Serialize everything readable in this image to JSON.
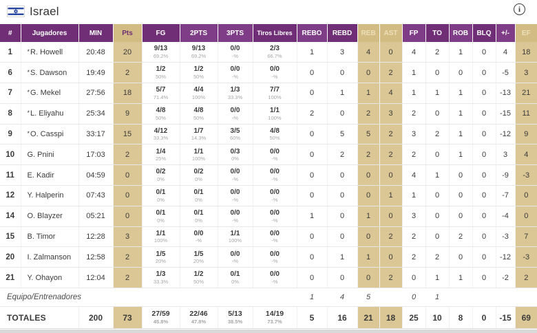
{
  "header": {
    "team": "Israel",
    "flag": "israel-flag",
    "info_label": "i"
  },
  "colors": {
    "header_purple_dark": "#6f2e76",
    "header_purple_light": "#7e3d86",
    "header_tan": "#d2bc84",
    "cell_tan": "#dbc795",
    "text": "#3a3a3a",
    "pct_text": "#a5a5a5",
    "flag_blue": "#1e3f9e"
  },
  "table": {
    "columns": [
      {
        "key": "num",
        "label": "#",
        "shade": "dark"
      },
      {
        "key": "name",
        "label": "Jugadores",
        "shade": "dark"
      },
      {
        "key": "min",
        "label": "MIN",
        "shade": "dark"
      },
      {
        "key": "pts",
        "label": "Pts",
        "shade": "tan",
        "tan": true,
        "ptsHead": true
      },
      {
        "key": "fg",
        "label": "FG",
        "shade": "dark"
      },
      {
        "key": "p2",
        "label": "2PTS",
        "shade": "light"
      },
      {
        "key": "p3",
        "label": "3PTS",
        "shade": "light"
      },
      {
        "key": "tl",
        "label": "Tiros Libres",
        "shade": "dark",
        "small": true
      },
      {
        "key": "rebo",
        "label": "REBO",
        "shade": "light"
      },
      {
        "key": "rebd",
        "label": "REBD",
        "shade": "dark"
      },
      {
        "key": "reb",
        "label": "REB",
        "shade": "tan",
        "tan": true
      },
      {
        "key": "ast",
        "label": "AST",
        "shade": "tan",
        "tan": true
      },
      {
        "key": "fp",
        "label": "FP",
        "shade": "light"
      },
      {
        "key": "to",
        "label": "TO",
        "shade": "dark"
      },
      {
        "key": "rob",
        "label": "ROB",
        "shade": "light"
      },
      {
        "key": "blq",
        "label": "BLQ",
        "shade": "dark"
      },
      {
        "key": "pm",
        "label": "+/-",
        "shade": "light"
      },
      {
        "key": "ef",
        "label": "EF",
        "shade": "tan",
        "tan": true
      }
    ],
    "rows": [
      {
        "num": "1",
        "name": "R. Howell",
        "starter": true,
        "min": "20:48",
        "pts": "20",
        "fg": {
          "v": "9/13",
          "p": "69.2%"
        },
        "p2": {
          "v": "9/13",
          "p": "69.2%"
        },
        "p3": {
          "v": "0/0",
          "p": "-%"
        },
        "tl": {
          "v": "2/3",
          "p": "66.7%"
        },
        "rebo": "1",
        "rebd": "3",
        "reb": "4",
        "ast": "0",
        "fp": "4",
        "to": "2",
        "rob": "1",
        "blq": "0",
        "pm": "4",
        "ef": "18"
      },
      {
        "num": "6",
        "name": "S. Dawson",
        "starter": true,
        "min": "19:49",
        "pts": "2",
        "fg": {
          "v": "1/2",
          "p": "50%"
        },
        "p2": {
          "v": "1/2",
          "p": "50%"
        },
        "p3": {
          "v": "0/0",
          "p": "-%"
        },
        "tl": {
          "v": "0/0",
          "p": "-%"
        },
        "rebo": "0",
        "rebd": "0",
        "reb": "0",
        "ast": "2",
        "fp": "1",
        "to": "0",
        "rob": "0",
        "blq": "0",
        "pm": "-5",
        "ef": "3"
      },
      {
        "num": "7",
        "name": "G. Mekel",
        "starter": true,
        "min": "27:56",
        "pts": "18",
        "fg": {
          "v": "5/7",
          "p": "71.4%"
        },
        "p2": {
          "v": "4/4",
          "p": "100%"
        },
        "p3": {
          "v": "1/3",
          "p": "33.3%"
        },
        "tl": {
          "v": "7/7",
          "p": "100%"
        },
        "rebo": "0",
        "rebd": "1",
        "reb": "1",
        "ast": "4",
        "fp": "1",
        "to": "1",
        "rob": "1",
        "blq": "0",
        "pm": "-13",
        "ef": "21"
      },
      {
        "num": "8",
        "name": "L. Eliyahu",
        "starter": true,
        "min": "25:34",
        "pts": "9",
        "fg": {
          "v": "4/8",
          "p": "50%"
        },
        "p2": {
          "v": "4/8",
          "p": "50%"
        },
        "p3": {
          "v": "0/0",
          "p": "-%"
        },
        "tl": {
          "v": "1/1",
          "p": "100%"
        },
        "rebo": "2",
        "rebd": "0",
        "reb": "2",
        "ast": "3",
        "fp": "2",
        "to": "0",
        "rob": "1",
        "blq": "0",
        "pm": "-15",
        "ef": "11"
      },
      {
        "num": "9",
        "name": "O. Casspi",
        "starter": true,
        "min": "33:17",
        "pts": "15",
        "fg": {
          "v": "4/12",
          "p": "33.3%"
        },
        "p2": {
          "v": "1/7",
          "p": "14.3%"
        },
        "p3": {
          "v": "3/5",
          "p": "60%"
        },
        "tl": {
          "v": "4/8",
          "p": "50%"
        },
        "rebo": "0",
        "rebd": "5",
        "reb": "5",
        "ast": "2",
        "fp": "3",
        "to": "2",
        "rob": "1",
        "blq": "0",
        "pm": "-12",
        "ef": "9"
      },
      {
        "num": "10",
        "name": "G. Pnini",
        "starter": false,
        "min": "17:03",
        "pts": "2",
        "fg": {
          "v": "1/4",
          "p": "25%"
        },
        "p2": {
          "v": "1/1",
          "p": "100%"
        },
        "p3": {
          "v": "0/3",
          "p": "0%"
        },
        "tl": {
          "v": "0/0",
          "p": "-%"
        },
        "rebo": "0",
        "rebd": "2",
        "reb": "2",
        "ast": "2",
        "fp": "2",
        "to": "0",
        "rob": "1",
        "blq": "0",
        "pm": "3",
        "ef": "4"
      },
      {
        "num": "11",
        "name": "E. Kadir",
        "starter": false,
        "min": "04:59",
        "pts": "0",
        "fg": {
          "v": "0/2",
          "p": "0%"
        },
        "p2": {
          "v": "0/2",
          "p": "0%"
        },
        "p3": {
          "v": "0/0",
          "p": "-%"
        },
        "tl": {
          "v": "0/0",
          "p": "-%"
        },
        "rebo": "0",
        "rebd": "0",
        "reb": "0",
        "ast": "0",
        "fp": "4",
        "to": "1",
        "rob": "0",
        "blq": "0",
        "pm": "-9",
        "ef": "-3"
      },
      {
        "num": "12",
        "name": "Y. Halperin",
        "starter": false,
        "min": "07:43",
        "pts": "0",
        "fg": {
          "v": "0/1",
          "p": "0%"
        },
        "p2": {
          "v": "0/1",
          "p": "0%"
        },
        "p3": {
          "v": "0/0",
          "p": "-%"
        },
        "tl": {
          "v": "0/0",
          "p": "-%"
        },
        "rebo": "0",
        "rebd": "0",
        "reb": "0",
        "ast": "1",
        "fp": "1",
        "to": "0",
        "rob": "0",
        "blq": "0",
        "pm": "-7",
        "ef": "0"
      },
      {
        "num": "14",
        "name": "O. Blayzer",
        "starter": false,
        "min": "05:21",
        "pts": "0",
        "fg": {
          "v": "0/1",
          "p": "0%"
        },
        "p2": {
          "v": "0/1",
          "p": "0%"
        },
        "p3": {
          "v": "0/0",
          "p": "-%"
        },
        "tl": {
          "v": "0/0",
          "p": "-%"
        },
        "rebo": "1",
        "rebd": "0",
        "reb": "1",
        "ast": "0",
        "fp": "3",
        "to": "0",
        "rob": "0",
        "blq": "0",
        "pm": "-4",
        "ef": "0"
      },
      {
        "num": "15",
        "name": "B. Timor",
        "starter": false,
        "min": "12:28",
        "pts": "3",
        "fg": {
          "v": "1/1",
          "p": "100%"
        },
        "p2": {
          "v": "0/0",
          "p": "-%"
        },
        "p3": {
          "v": "1/1",
          "p": "100%"
        },
        "tl": {
          "v": "0/0",
          "p": "-%"
        },
        "rebo": "0",
        "rebd": "0",
        "reb": "0",
        "ast": "2",
        "fp": "2",
        "to": "0",
        "rob": "2",
        "blq": "0",
        "pm": "-3",
        "ef": "7"
      },
      {
        "num": "20",
        "name": "I. Zalmanson",
        "starter": false,
        "min": "12:58",
        "pts": "2",
        "fg": {
          "v": "1/5",
          "p": "20%"
        },
        "p2": {
          "v": "1/5",
          "p": "20%"
        },
        "p3": {
          "v": "0/0",
          "p": "-%"
        },
        "tl": {
          "v": "0/0",
          "p": "-%"
        },
        "rebo": "0",
        "rebd": "1",
        "reb": "1",
        "ast": "0",
        "fp": "2",
        "to": "2",
        "rob": "0",
        "blq": "0",
        "pm": "-12",
        "ef": "-3"
      },
      {
        "num": "21",
        "name": "Y. Ohayon",
        "starter": false,
        "min": "12:04",
        "pts": "2",
        "fg": {
          "v": "1/3",
          "p": "33.3%"
        },
        "p2": {
          "v": "1/2",
          "p": "50%"
        },
        "p3": {
          "v": "0/1",
          "p": "0%"
        },
        "tl": {
          "v": "0/0",
          "p": "-%"
        },
        "rebo": "0",
        "rebd": "0",
        "reb": "0",
        "ast": "2",
        "fp": "0",
        "to": "1",
        "rob": "1",
        "blq": "0",
        "pm": "-2",
        "ef": "2"
      }
    ],
    "team_row": {
      "label": "Equipo/Entrenadores",
      "rebo": "1",
      "rebd": "4",
      "reb": "5",
      "ast": "",
      "fp": "0",
      "to": "1",
      "rob": "",
      "blq": "",
      "pm": "",
      "ef": ""
    },
    "totals": {
      "label": "TOTALES",
      "min": "200",
      "pts": "73",
      "fg": {
        "v": "27/59",
        "p": "45.8%"
      },
      "p2": {
        "v": "22/46",
        "p": "47.8%"
      },
      "p3": {
        "v": "5/13",
        "p": "38.5%"
      },
      "tl": {
        "v": "14/19",
        "p": "73.7%"
      },
      "rebo": "5",
      "rebd": "16",
      "reb": "21",
      "ast": "18",
      "fp": "25",
      "to": "10",
      "rob": "8",
      "blq": "0",
      "pm": "-15",
      "ef": "69"
    }
  }
}
